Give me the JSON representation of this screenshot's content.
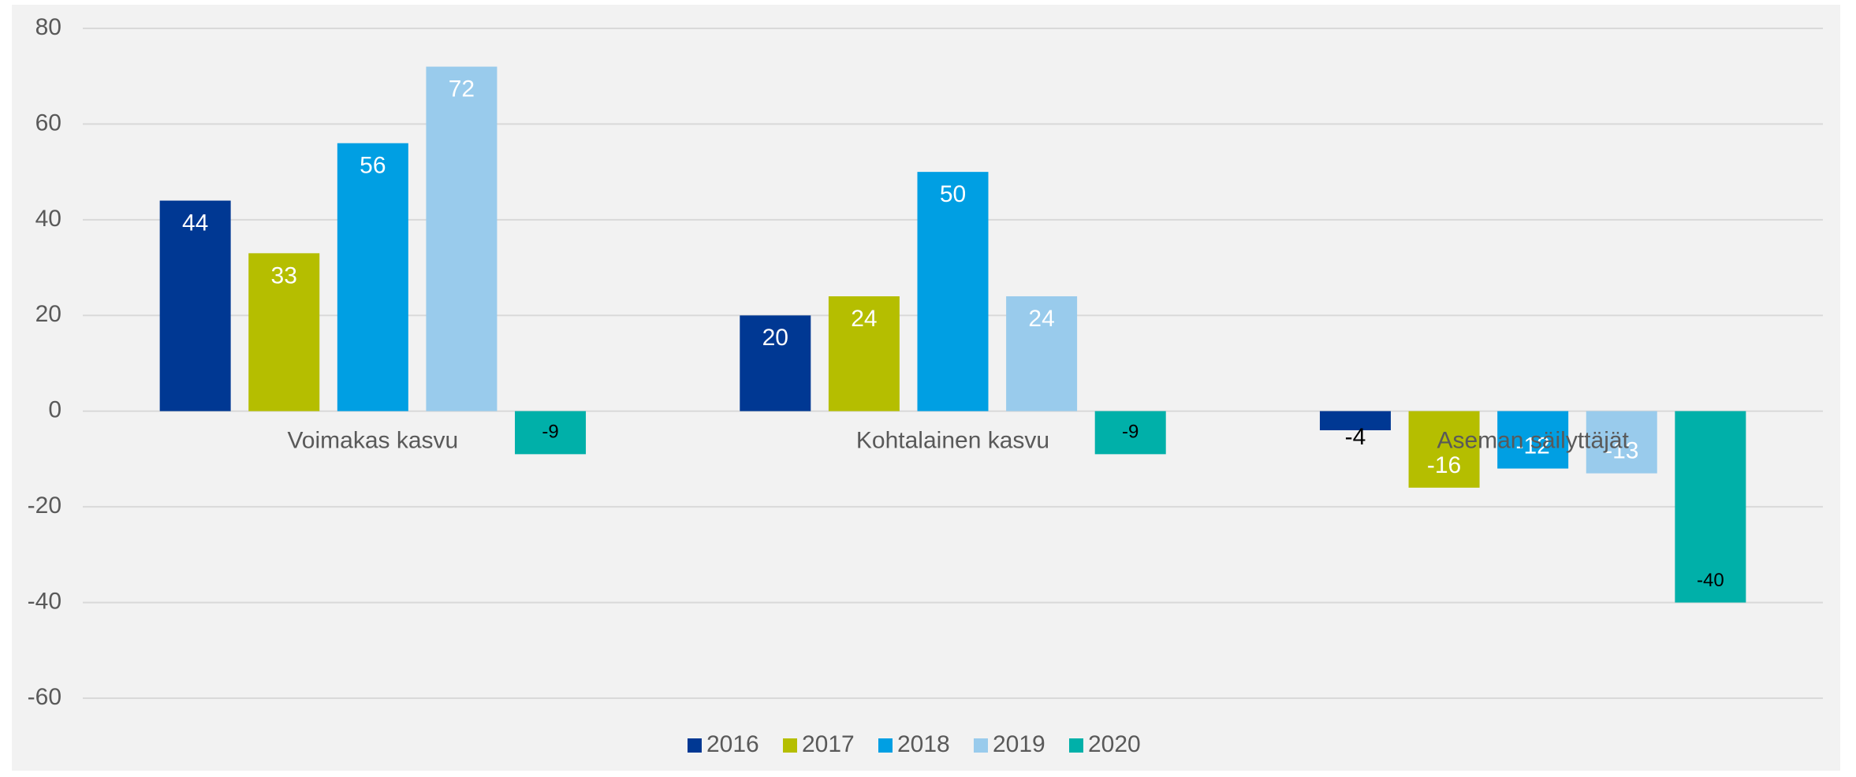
{
  "chart_data": {
    "type": "bar",
    "categories": [
      "Voimakas kasvu",
      "Kohtalainen kasvu",
      "Aseman säilyttäjät"
    ],
    "series": [
      {
        "name": "2016",
        "color": "#003893",
        "label_color": "#ffffff",
        "values": [
          44,
          20,
          -4
        ]
      },
      {
        "name": "2017",
        "color": "#b5be00",
        "label_color": "#ffffff",
        "values": [
          33,
          24,
          -16
        ]
      },
      {
        "name": "2018",
        "color": "#009fe3",
        "label_color": "#ffffff",
        "values": [
          56,
          50,
          -12
        ]
      },
      {
        "name": "2019",
        "color": "#99cbec",
        "label_color": "#ffffff",
        "values": [
          72,
          24,
          -13
        ]
      },
      {
        "name": "2020",
        "color": "#00b0a9",
        "label_color": "#000000",
        "values": [
          -9,
          -9,
          -40
        ]
      }
    ],
    "ylim": [
      -60,
      80
    ],
    "yticks": [
      -60,
      -40,
      -20,
      0,
      20,
      40,
      60,
      80
    ],
    "grid": true,
    "legend": "bottom"
  }
}
